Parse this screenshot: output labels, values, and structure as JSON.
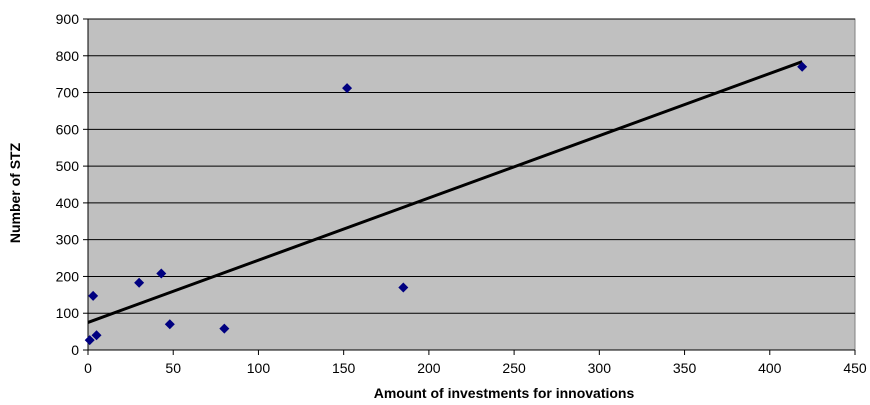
{
  "chart_data": {
    "type": "scatter",
    "title": "",
    "xlabel": "Amount of investments for innovations",
    "ylabel": "Number of STZ",
    "xlim": [
      0,
      450
    ],
    "ylim": [
      0,
      900
    ],
    "xticks": [
      0,
      50,
      100,
      150,
      200,
      250,
      300,
      350,
      400,
      450
    ],
    "yticks": [
      0,
      100,
      200,
      300,
      400,
      500,
      600,
      700,
      800,
      900
    ],
    "x_tick_labels": [
      "0",
      "50",
      "100",
      "150",
      "200",
      "250",
      "300",
      "350",
      "400",
      "450"
    ],
    "y_tick_labels": [
      "0",
      "100",
      "200",
      "300",
      "400",
      "500",
      "600",
      "700",
      "800",
      "900"
    ],
    "grid": "horizontal",
    "legend": "none",
    "plot_background": "#c0c0c0",
    "marker_color": "#000080",
    "trendline_color": "#000000",
    "series": [
      {
        "points": [
          {
            "x": 1,
            "y": 27
          },
          {
            "x": 3,
            "y": 147
          },
          {
            "x": 5,
            "y": 40
          },
          {
            "x": 30,
            "y": 183
          },
          {
            "x": 43,
            "y": 208
          },
          {
            "x": 48,
            "y": 70
          },
          {
            "x": 80,
            "y": 58
          },
          {
            "x": 152,
            "y": 712
          },
          {
            "x": 185,
            "y": 170
          },
          {
            "x": 419,
            "y": 770
          }
        ]
      }
    ],
    "trendline": {
      "type": "linear",
      "x": [
        0,
        419
      ],
      "y": [
        75,
        784
      ]
    }
  }
}
